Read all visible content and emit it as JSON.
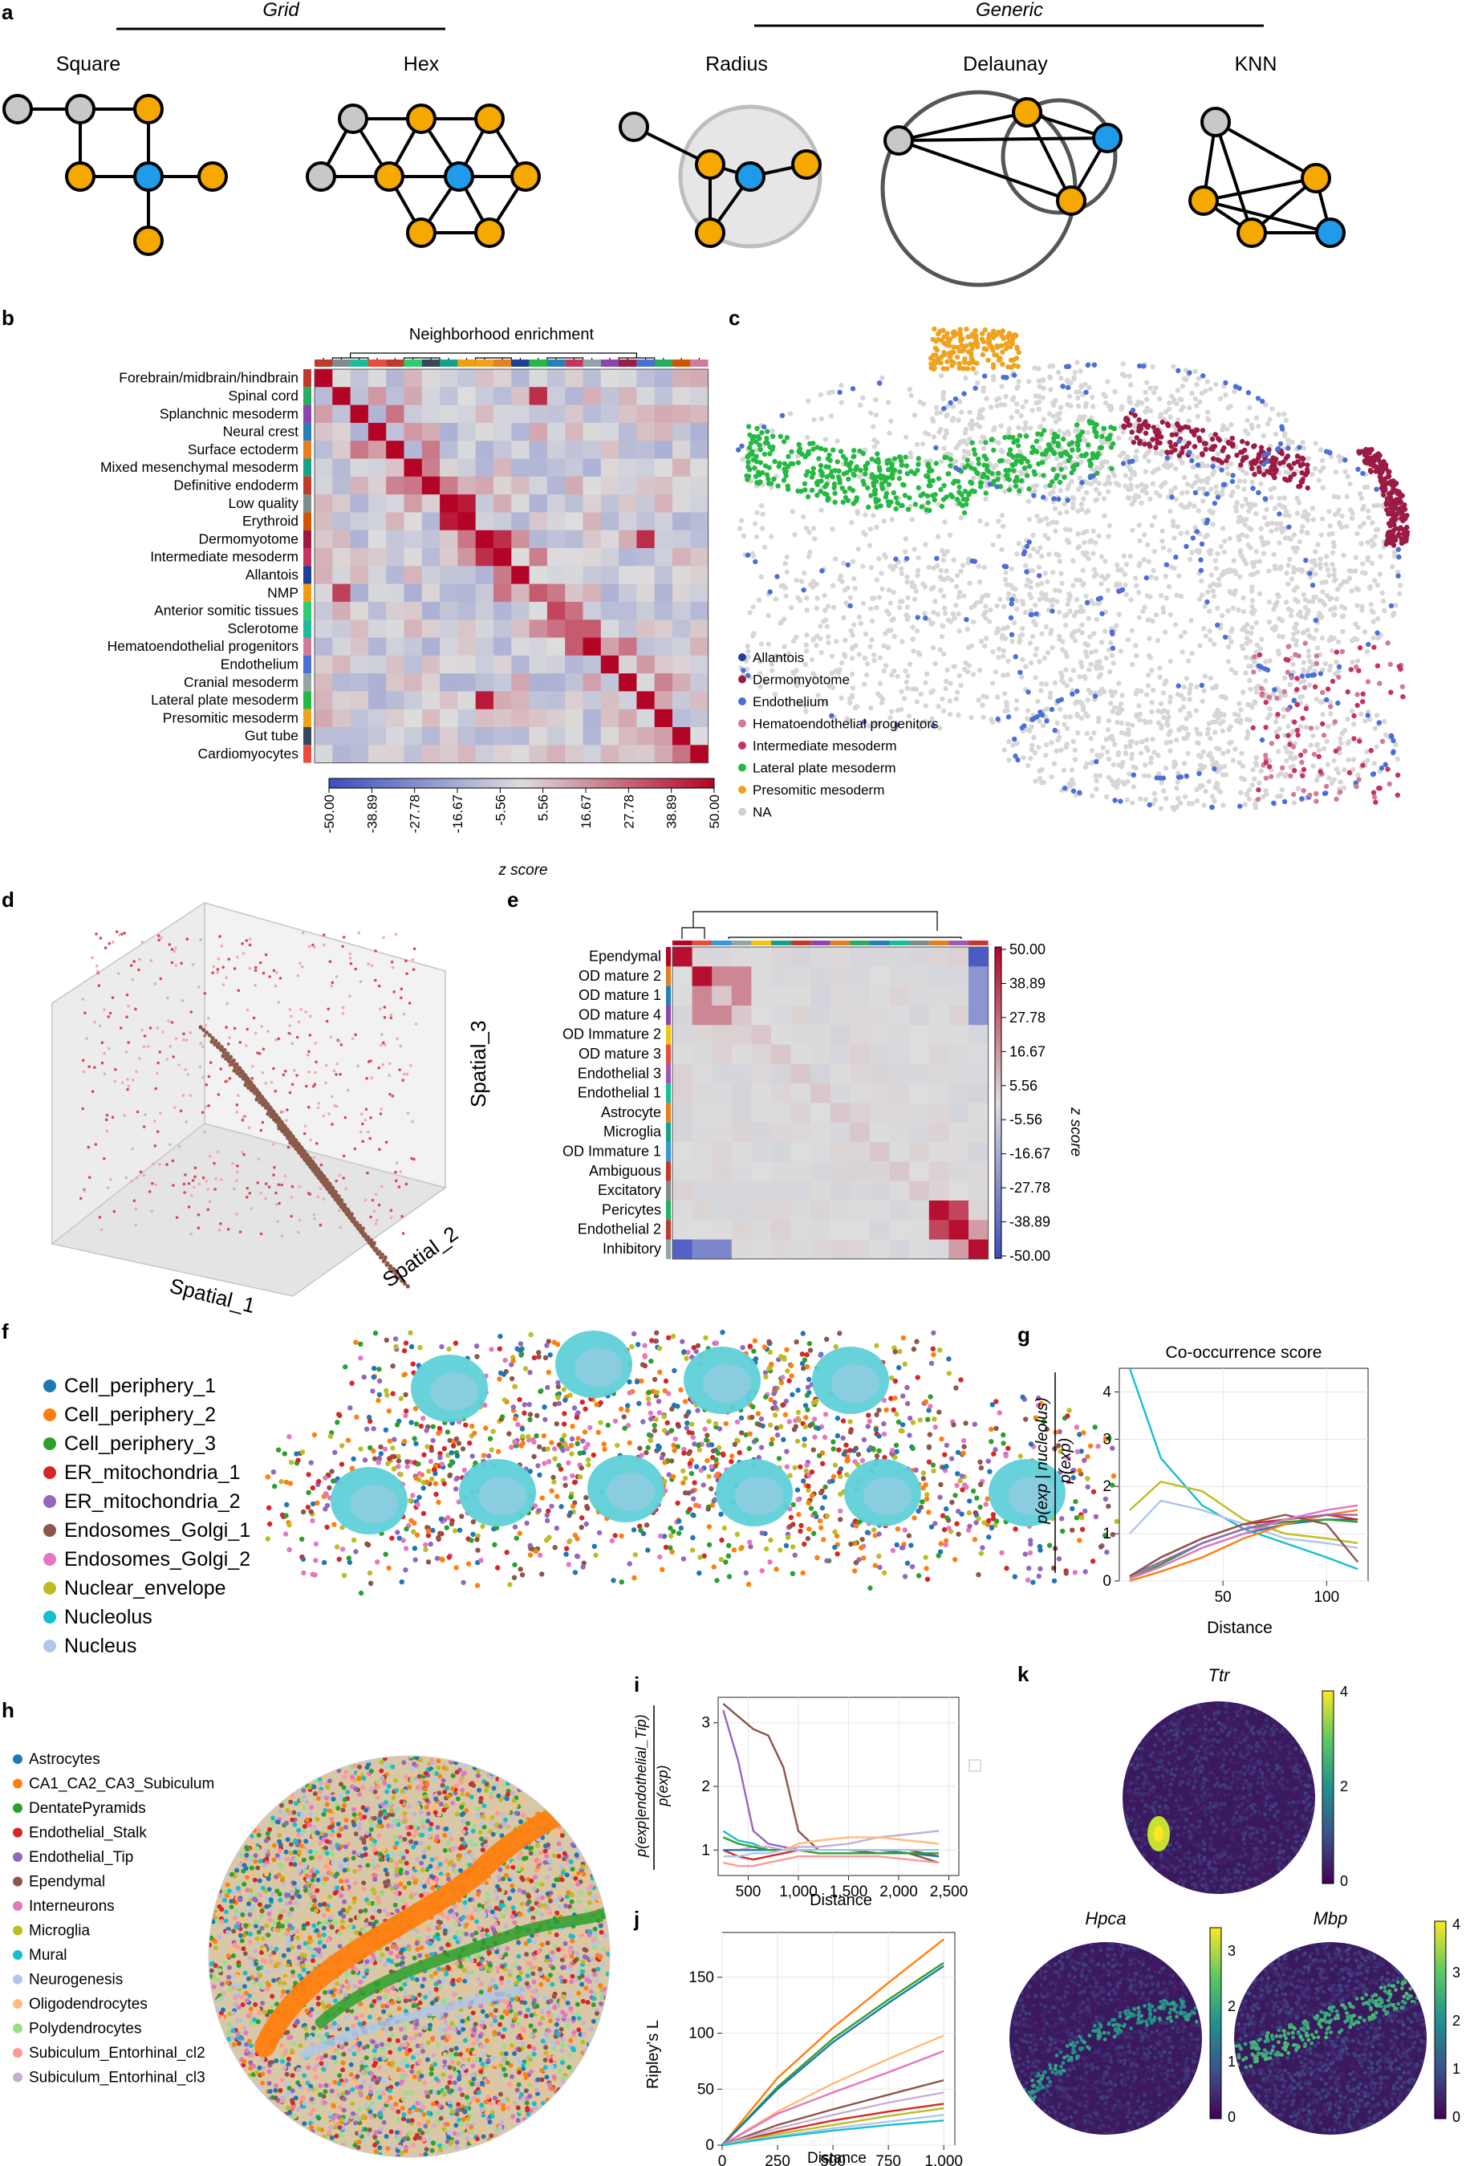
{
  "panels": {
    "a": "a",
    "b": "b",
    "c": "c",
    "d": "d",
    "e": "e",
    "f": "f",
    "g": "g",
    "h": "h",
    "i": "i",
    "j": "j",
    "k": "k"
  },
  "panel_a": {
    "grid_header": "Grid",
    "generic_header": "Generic",
    "graphs": [
      "Square",
      "Hex",
      "Radius",
      "Delaunay",
      "KNN"
    ],
    "colors": {
      "center": "#1f9bea",
      "neighbor": "#f5a800",
      "other": "#c8c8c8"
    }
  },
  "panel_b": {
    "title": "Neighborhood enrichment",
    "rows": [
      "Forebrain/midbrain/hindbrain",
      "Spinal cord",
      "Splanchnic mesoderm",
      "Neural crest",
      "Surface ectoderm",
      "Mixed mesenchymal mesoderm",
      "Definitive endoderm",
      "Low quality",
      "Erythroid",
      "Dermomyotome",
      "Intermediate mesoderm",
      "Allantois",
      "NMP",
      "Anterior somitic tissues",
      "Sclerotome",
      "Hematoendothelial progenitors",
      "Endothelium",
      "Cranial mesoderm",
      "Lateral plate mesoderm",
      "Presomitic mesoderm",
      "Gut tube",
      "Cardiomyocytes"
    ],
    "colorbar_ticks": [
      "-50.00",
      "-38.89",
      "-27.78",
      "-16.67",
      "-5.56",
      "5.56",
      "16.67",
      "27.78",
      "38.89",
      "50.00"
    ],
    "colorbar_label": "z score"
  },
  "panel_c": {
    "legend": [
      {
        "label": "Allantois",
        "color": "#1f3f96"
      },
      {
        "label": "Dermomyotome",
        "color": "#9b1b44"
      },
      {
        "label": "Endothelium",
        "color": "#4a6fd6"
      },
      {
        "label": "Hematoendothelial progenitors",
        "color": "#d17a9b"
      },
      {
        "label": "Intermediate mesoderm",
        "color": "#c8325d"
      },
      {
        "label": "Lateral plate mesoderm",
        "color": "#26b843"
      },
      {
        "label": "Presomitic mesoderm",
        "color": "#f0a21f"
      },
      {
        "label": "NA",
        "color": "#cfcfcf"
      }
    ]
  },
  "panel_d": {
    "axes": [
      "Spatial_1",
      "Spatial_2",
      "Spatial_3"
    ]
  },
  "panel_e": {
    "rows": [
      "Ependymal",
      "OD mature 2",
      "OD mature 1",
      "OD mature 4",
      "OD Immature 2",
      "OD mature 3",
      "Endothelial 3",
      "Endothelial 1",
      "Astrocyte",
      "Microglia",
      "OD Immature 1",
      "Ambiguous",
      "Excitatory",
      "Pericytes",
      "Endothelial 2",
      "Inhibitory"
    ],
    "colorbar_ticks": [
      "50.00",
      "38.89",
      "27.78",
      "16.67",
      "5.56",
      "-5.56",
      "-16.67",
      "-27.78",
      "-38.89",
      "-50.00"
    ],
    "colorbar_label": "z score"
  },
  "panel_f": {
    "legend": [
      {
        "label": "Cell_periphery_1",
        "color": "#1f77b4"
      },
      {
        "label": "Cell_periphery_2",
        "color": "#ff7f0e"
      },
      {
        "label": "Cell_periphery_3",
        "color": "#2ca02c"
      },
      {
        "label": "ER_mitochondria_1",
        "color": "#d62728"
      },
      {
        "label": "ER_mitochondria_2",
        "color": "#9467bd"
      },
      {
        "label": "Endosomes_Golgi_1",
        "color": "#8c564b"
      },
      {
        "label": "Endosomes_Golgi_2",
        "color": "#e377c2"
      },
      {
        "label": "Nuclear_envelope",
        "color": "#bcbd22"
      },
      {
        "label": "Nucleolus",
        "color": "#17becf"
      },
      {
        "label": "Nucleus",
        "color": "#aec7e8"
      }
    ]
  },
  "panel_g": {
    "title": "Co-occurrence score",
    "ylabel_num": "p(exp | nucleolus)",
    "ylabel_den": "p(exp)",
    "xlabel": "Distance",
    "xticks": [
      "50",
      "100"
    ],
    "yticks": [
      "0",
      "1",
      "2",
      "3",
      "4"
    ]
  },
  "panel_h": {
    "legend": [
      {
        "label": "Astrocytes",
        "color": "#1f77b4"
      },
      {
        "label": "CA1_CA2_CA3_Subiculum",
        "color": "#ff7f0e"
      },
      {
        "label": "DentatePyramids",
        "color": "#2ca02c"
      },
      {
        "label": "Endothelial_Stalk",
        "color": "#d62728"
      },
      {
        "label": "Endothelial_Tip",
        "color": "#9467bd"
      },
      {
        "label": "Ependymal",
        "color": "#8c564b"
      },
      {
        "label": "Interneurons",
        "color": "#e377c2"
      },
      {
        "label": "Microglia",
        "color": "#bcbd22"
      },
      {
        "label": "Mural",
        "color": "#17becf"
      },
      {
        "label": "Neurogenesis",
        "color": "#aec7e8"
      },
      {
        "label": "Oligodendrocytes",
        "color": "#ffbb78"
      },
      {
        "label": "Polydendrocytes",
        "color": "#98df8a"
      },
      {
        "label": "Subiculum_Entorhinal_cl2",
        "color": "#ff9896"
      },
      {
        "label": "Subiculum_Entorhinal_cl3",
        "color": "#c5b0d5"
      }
    ]
  },
  "panel_i": {
    "ylabel_num": "p(exp|endothelial_Tip)",
    "ylabel_den": "p(exp)",
    "xlabel": "Distance",
    "xticks": [
      "500",
      "1,000",
      "1,500",
      "2,000",
      "2,500"
    ],
    "yticks": [
      "1",
      "2",
      "3"
    ]
  },
  "panel_j": {
    "ylabel": "Ripley's L",
    "xlabel": "Distance",
    "xticks": [
      "0",
      "250",
      "500",
      "750",
      "1,000"
    ],
    "yticks": [
      "0",
      "50",
      "100",
      "150"
    ]
  },
  "panel_k": {
    "genes": [
      "Ttr",
      "Hpca",
      "Mbp"
    ],
    "ttr_ticks": [
      "0",
      "2",
      "4"
    ],
    "hpca_ticks": [
      "0",
      "1",
      "2",
      "3"
    ],
    "mbp_ticks": [
      "0",
      "1",
      "2",
      "3",
      "4"
    ]
  },
  "chart_data": [
    {
      "type": "line",
      "title": "Co-occurrence score",
      "xlabel": "Distance",
      "ylabel": "p(exp | nucleolus) / p(exp)",
      "xlim": [
        0,
        120
      ],
      "ylim": [
        0,
        4.5
      ],
      "x": [
        5,
        20,
        40,
        60,
        80,
        100,
        115
      ],
      "series": [
        {
          "name": "Nucleolus",
          "color": "#17becf",
          "values": [
            4.5,
            2.6,
            1.6,
            1.1,
            0.8,
            0.5,
            0.25
          ]
        },
        {
          "name": "Nuclear_envelope",
          "color": "#bcbd22",
          "values": [
            1.5,
            2.1,
            1.9,
            1.3,
            1.0,
            0.9,
            0.8
          ]
        },
        {
          "name": "Nucleus",
          "color": "#aec7e8",
          "values": [
            1.0,
            1.7,
            1.5,
            1.2,
            0.9,
            0.8,
            0.7
          ]
        },
        {
          "name": "Cell_periphery_1",
          "color": "#1f77b4",
          "values": [
            0.05,
            0.3,
            0.7,
            1.0,
            1.2,
            1.3,
            1.3
          ]
        },
        {
          "name": "Cell_periphery_2",
          "color": "#ff7f0e",
          "values": [
            0.0,
            0.2,
            0.5,
            0.9,
            1.2,
            1.4,
            1.5
          ]
        },
        {
          "name": "Cell_periphery_3",
          "color": "#2ca02c",
          "values": [
            0.05,
            0.35,
            0.8,
            1.1,
            1.25,
            1.3,
            1.25
          ]
        },
        {
          "name": "ER_mitochondria_1",
          "color": "#d62728",
          "values": [
            0.1,
            0.5,
            0.9,
            1.2,
            1.3,
            1.4,
            1.3
          ]
        },
        {
          "name": "ER_mitochondria_2",
          "color": "#9467bd",
          "values": [
            0.1,
            0.4,
            0.8,
            1.1,
            1.3,
            1.4,
            1.4
          ]
        },
        {
          "name": "Endosomes_Golgi_1",
          "color": "#8c564b",
          "values": [
            0.1,
            0.5,
            0.9,
            1.2,
            1.4,
            1.2,
            0.4
          ]
        },
        {
          "name": "Endosomes_Golgi_2",
          "color": "#e377c2",
          "values": [
            0.05,
            0.3,
            0.7,
            1.0,
            1.3,
            1.5,
            1.6
          ]
        }
      ]
    },
    {
      "type": "line",
      "xlabel": "Distance",
      "ylabel": "p(exp|endothelial_Tip) / p(exp)",
      "xlim": [
        200,
        2600
      ],
      "ylim": [
        0.6,
        3.4
      ],
      "x": [
        250,
        400,
        550,
        700,
        850,
        1000,
        1200,
        1500,
        1800,
        2100,
        2400
      ],
      "series": [
        {
          "name": "Ependymal",
          "color": "#8c564b",
          "values": [
            3.3,
            3.1,
            2.9,
            2.8,
            2.3,
            1.3,
            1.0,
            1.0,
            0.95,
            0.95,
            0.8
          ]
        },
        {
          "name": "Endothelial_Tip",
          "color": "#9467bd",
          "values": [
            3.2,
            2.4,
            1.3,
            1.1,
            1.05,
            1.0,
            1.0,
            1.0,
            1.0,
            1.0,
            1.0
          ]
        },
        {
          "name": "Mural",
          "color": "#17becf",
          "values": [
            1.3,
            1.15,
            1.1,
            1.0,
            1.0,
            1.0,
            1.0,
            1.0,
            1.0,
            1.0,
            1.0
          ]
        },
        {
          "name": "Endothelial_Stalk",
          "color": "#d62728",
          "values": [
            1.0,
            0.9,
            0.85,
            0.9,
            0.95,
            1.0,
            1.0,
            1.0,
            1.0,
            1.0,
            0.9
          ]
        },
        {
          "name": "Subiculum_Entorhinal_cl3",
          "color": "#c5b0d5",
          "values": [
            1.0,
            1.0,
            1.05,
            1.05,
            1.0,
            1.05,
            1.05,
            1.1,
            1.2,
            1.25,
            1.3
          ]
        },
        {
          "name": "Oligodendrocytes",
          "color": "#ffbb78",
          "values": [
            1.0,
            1.0,
            1.0,
            1.0,
            1.0,
            1.1,
            1.15,
            1.2,
            1.2,
            1.15,
            1.1
          ]
        },
        {
          "name": "Subiculum_Entorhinal_cl2",
          "color": "#ff9896",
          "values": [
            0.8,
            0.75,
            0.75,
            0.8,
            0.85,
            0.9,
            0.9,
            0.9,
            0.9,
            0.85,
            0.8
          ]
        },
        {
          "name": "Astrocytes",
          "color": "#1f77b4",
          "values": [
            1.0,
            1.0,
            1.0,
            1.0,
            1.0,
            1.0,
            1.0,
            1.0,
            1.0,
            0.95,
            0.9
          ]
        },
        {
          "name": "DentatePyramids",
          "color": "#2ca02c",
          "values": [
            1.2,
            1.1,
            1.05,
            1.0,
            1.0,
            1.0,
            0.95,
            0.95,
            0.95,
            0.95,
            0.95
          ]
        },
        {
          "name": "Neurogenesis",
          "color": "#aec7e8",
          "values": [
            0.9,
            0.9,
            0.95,
            0.95,
            1.0,
            1.0,
            1.0,
            1.0,
            1.0,
            1.0,
            1.0
          ]
        }
      ]
    },
    {
      "type": "line",
      "xlabel": "Distance",
      "ylabel": "Ripley's L",
      "xlim": [
        0,
        1050
      ],
      "ylim": [
        0,
        190
      ],
      "x": [
        0,
        250,
        500,
        750,
        1000
      ],
      "series": [
        {
          "name": "CA1_CA2_CA3_Subiculum",
          "color": "#ff7f0e",
          "values": [
            0,
            60,
            105,
            145,
            184
          ]
        },
        {
          "name": "DentatePyramids",
          "color": "#2ca02c",
          "values": [
            0,
            52,
            95,
            130,
            163
          ]
        },
        {
          "name": "Astrocytes",
          "color": "#1f77b4",
          "values": [
            0,
            50,
            92,
            127,
            160
          ]
        },
        {
          "name": "Oligodendrocytes",
          "color": "#ffbb78",
          "values": [
            0,
            30,
            55,
            77,
            98
          ]
        },
        {
          "name": "Interneurons",
          "color": "#e377c2",
          "values": [
            0,
            28,
            47,
            65,
            84
          ]
        },
        {
          "name": "Ependymal",
          "color": "#8c564b",
          "values": [
            0,
            18,
            32,
            45,
            58
          ]
        },
        {
          "name": "Endothelial_Stalk",
          "color": "#d62728",
          "values": [
            0,
            12,
            22,
            30,
            37
          ]
        },
        {
          "name": "Subiculum_Entorhinal_cl3",
          "color": "#c5b0d5",
          "values": [
            0,
            15,
            27,
            38,
            47
          ]
        },
        {
          "name": "Microglia",
          "color": "#bcbd22",
          "values": [
            0,
            10,
            18,
            26,
            33
          ]
        },
        {
          "name": "Neurogenesis",
          "color": "#aec7e8",
          "values": [
            0,
            8,
            15,
            21,
            27
          ]
        },
        {
          "name": "Mural",
          "color": "#17becf",
          "values": [
            0,
            7,
            13,
            18,
            22
          ]
        }
      ]
    }
  ]
}
